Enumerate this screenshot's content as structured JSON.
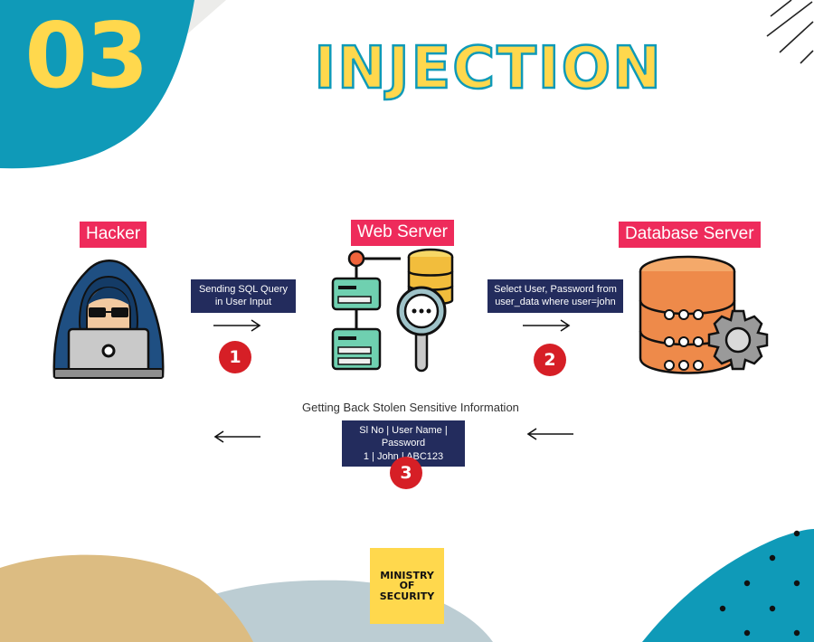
{
  "header": {
    "number": "03",
    "title": "INJECTION"
  },
  "actors": {
    "hacker": {
      "label": "Hacker"
    },
    "web_server": {
      "label": "Web Server"
    },
    "database_server": {
      "label": "Database Server"
    }
  },
  "steps": [
    {
      "number": "1",
      "lines": [
        "Sending SQL Query",
        "in User Input"
      ]
    },
    {
      "number": "2",
      "lines": [
        "Select User, Password from",
        "user_data where user=john"
      ]
    },
    {
      "number": "3",
      "caption": "Getting Back Stolen Sensitive Information",
      "lines": [
        "Sl No | User Name | Password",
        "1 | John | ABC123"
      ]
    }
  ],
  "logo": {
    "lines": [
      "MINISTRY",
      "OF",
      "SECURITY"
    ]
  },
  "colors": {
    "teal": "#0f9ab8",
    "yellow": "#ffd84d",
    "pink_label": "#ee2b5b",
    "navy_note": "#232c5d",
    "step_red": "#d61f26",
    "tan": "#dcbc82",
    "grey_blue": "#bccdd3"
  }
}
